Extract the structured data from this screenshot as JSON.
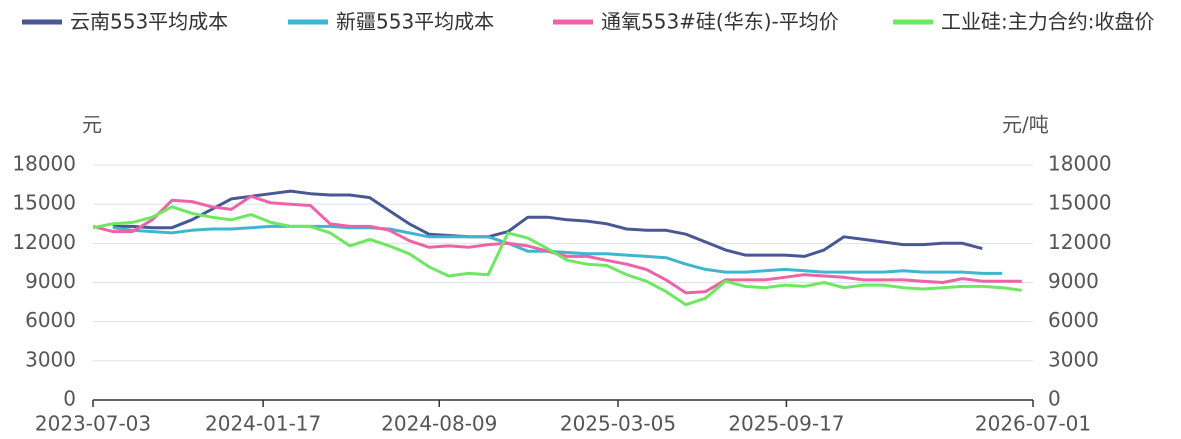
{
  "chart_data": {
    "type": "line",
    "y_label": "元",
    "y2_label": "元/吨",
    "x": [
      "2023-07-03",
      "2023-07-26",
      "2023-08-18",
      "2023-09-10",
      "2023-10-03",
      "2023-10-26",
      "2023-11-18",
      "2023-12-11",
      "2024-01-03",
      "2024-01-26",
      "2024-02-18",
      "2024-03-12",
      "2024-04-04",
      "2024-04-27",
      "2024-05-20",
      "2024-06-12",
      "2024-07-05",
      "2024-07-28",
      "2024-08-20",
      "2024-09-12",
      "2024-10-05",
      "2024-10-28",
      "2024-11-20",
      "2024-12-13",
      "2025-01-05",
      "2025-01-28",
      "2025-02-20",
      "2025-03-15",
      "2025-04-07",
      "2025-04-30",
      "2025-05-23",
      "2025-06-15",
      "2025-07-08",
      "2025-07-31",
      "2025-08-23",
      "2025-09-15",
      "2025-10-08",
      "2025-10-31",
      "2025-11-23",
      "2025-12-16",
      "2026-01-08",
      "2026-01-31",
      "2026-02-23",
      "2026-03-18",
      "2026-04-10",
      "2026-05-03",
      "2026-05-26",
      "2026-06-18"
    ],
    "xlim": [
      "2023-07-03",
      "2026-07-01"
    ],
    "xticks": [
      "2023-07-03",
      "2024-01-17",
      "2024-08-09",
      "2025-03-05",
      "2025-09-17",
      "2026-07-01"
    ],
    "ylim": [
      0,
      18000
    ],
    "yticks": [
      0,
      3000,
      6000,
      9000,
      12000,
      15000,
      18000
    ],
    "y2lim": [
      0,
      18000
    ],
    "y2ticks": [
      0,
      3000,
      6000,
      9000,
      12000,
      15000,
      18000
    ],
    "grid": true,
    "legend": "top",
    "series": [
      {
        "name": "云南553平均成本",
        "color": "#4a5795",
        "values": [
          null,
          13300,
          13300,
          13200,
          13200,
          13800,
          14600,
          15400,
          15600,
          15800,
          16000,
          15800,
          15700,
          15700,
          15500,
          14500,
          13500,
          12700,
          12600,
          12500,
          12500,
          12900,
          14000,
          14000,
          13800,
          13700,
          13500,
          13100,
          13000,
          13000,
          12700,
          12100,
          11500,
          11100,
          11100,
          11100,
          11000,
          11500,
          12500,
          12300,
          12100,
          11900,
          11900,
          12000,
          12000,
          11600,
          null,
          null
        ]
      },
      {
        "name": "新疆553平均成本",
        "color": "#3fb6d0",
        "values": [
          null,
          13200,
          13000,
          12900,
          12800,
          13000,
          13100,
          13100,
          13200,
          13300,
          13300,
          13300,
          13300,
          13200,
          13200,
          13100,
          12800,
          12500,
          12500,
          12500,
          12500,
          12000,
          11400,
          11400,
          11300,
          11200,
          11200,
          11100,
          11000,
          10900,
          10400,
          10000,
          9800,
          9800,
          9900,
          10000,
          9900,
          9800,
          9800,
          9800,
          9800,
          9900,
          9800,
          9800,
          9800,
          9700,
          9700,
          null
        ]
      },
      {
        "name": "通氧553#硅(华东)-平均价",
        "color": "#ee62a8",
        "axis": "y2",
        "values": [
          13300,
          12900,
          12900,
          13800,
          15300,
          15200,
          14800,
          14600,
          15600,
          15100,
          15000,
          14900,
          13500,
          13300,
          13300,
          13000,
          12200,
          11700,
          11800,
          11700,
          11900,
          12000,
          11800,
          11400,
          11000,
          11000,
          10700,
          10400,
          10000,
          9200,
          8200,
          8300,
          9200,
          9200,
          9200,
          9400,
          9600,
          9500,
          9400,
          9200,
          9200,
          9200,
          9100,
          9000,
          9300,
          9100,
          9100,
          9100
        ]
      },
      {
        "name": "工业硅:主力合约:收盘价",
        "color": "#6de860",
        "axis": "y2",
        "values": [
          13200,
          13500,
          13600,
          14000,
          14800,
          14300,
          14000,
          13800,
          14200,
          13600,
          13300,
          13300,
          12800,
          11800,
          12300,
          11800,
          11200,
          10200,
          9500,
          9700,
          9600,
          12800,
          12400,
          11600,
          10700,
          10400,
          10300,
          9600,
          9100,
          8300,
          7300,
          7800,
          9100,
          8700,
          8600,
          8800,
          8700,
          9000,
          8600,
          8800,
          8800,
          8600,
          8500,
          8600,
          8700,
          8700,
          8600,
          8400
        ]
      }
    ]
  }
}
